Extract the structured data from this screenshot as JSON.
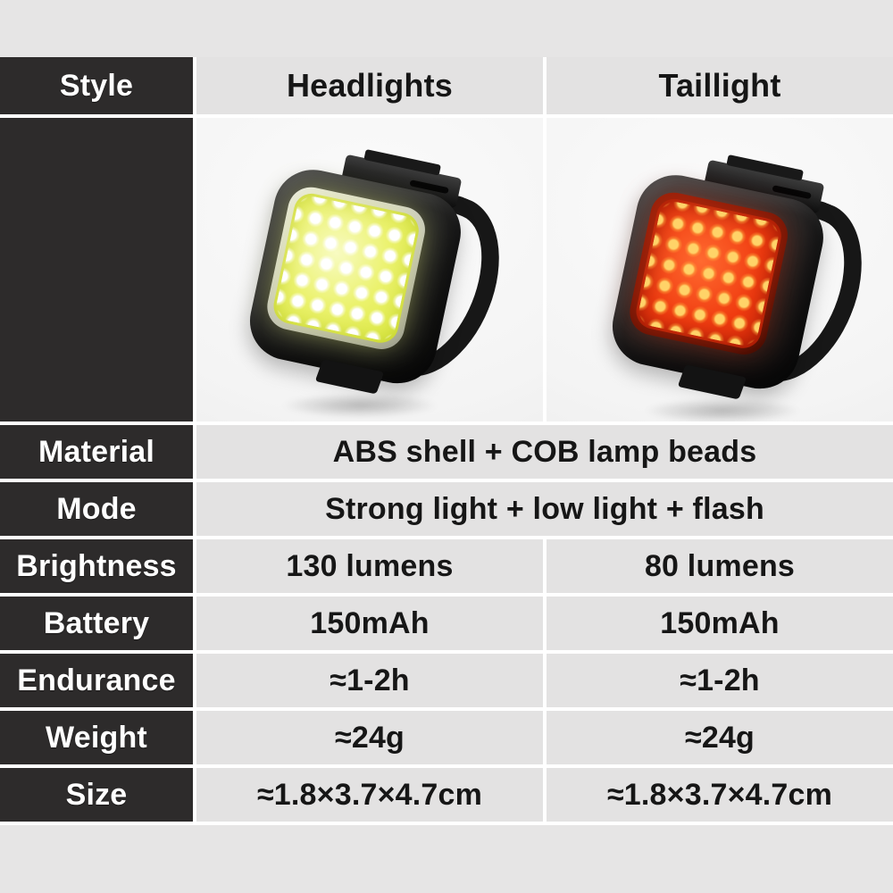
{
  "header": {
    "style_label": "Style",
    "columns": [
      "Headlights",
      "Taillight"
    ]
  },
  "specs": [
    {
      "label": "Material",
      "merged": true,
      "value": "ABS shell + COB lamp beads"
    },
    {
      "label": "Mode",
      "merged": true,
      "value": "Strong light + low light + flash"
    },
    {
      "label": "Brightness",
      "values": [
        "130 lumens",
        "80 lumens"
      ]
    },
    {
      "label": "Battery",
      "values": [
        "150mAh",
        "150mAh"
      ]
    },
    {
      "label": "Endurance",
      "values": [
        "≈1-2h",
        "≈1-2h"
      ]
    },
    {
      "label": "Weight",
      "values": [
        "≈24g",
        "≈24g"
      ]
    },
    {
      "label": "Size",
      "values": [
        "≈1.8×3.7×4.7cm",
        "≈1.8×3.7×4.7cm"
      ]
    }
  ],
  "products": [
    {
      "id": "headlight",
      "photo": "black square COB headlight with strap, lit yellow-white",
      "led_color": "#dce93f",
      "dot_color": "#ffffff"
    },
    {
      "id": "taillight",
      "photo": "black square COB taillight with strap, lit red",
      "led_color": "#e83410",
      "dot_color": "#ffd368"
    }
  ],
  "colors": {
    "page_bg": "#e6e5e5",
    "label_cell_bg": "#2d2b2b",
    "value_cell_bg": "#e3e2e2",
    "gap_lines": "#ffffff",
    "label_text": "#ffffff",
    "value_text": "#161616"
  }
}
